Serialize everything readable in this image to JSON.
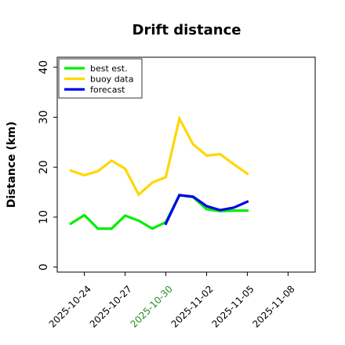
{
  "chart_data": {
    "type": "line",
    "title": "Drift distance",
    "ylabel": "Distance (km)",
    "xlabel": "",
    "ylim": [
      -1,
      42
    ],
    "xlim": [
      "2025-10-22",
      "2025-11-10"
    ],
    "yticks": [
      0,
      10,
      20,
      30,
      40
    ],
    "xticks": [
      "2025-10-24",
      "2025-10-27",
      "2025-10-30",
      "2025-11-02",
      "2025-11-05",
      "2025-11-08"
    ],
    "highlight_tick": "2025-10-30",
    "highlight_color": "#228B22",
    "legend": {
      "position": "top-left"
    },
    "grid": false,
    "series": [
      {
        "name": "best est.",
        "color": "#00ee00",
        "x": [
          "2025-10-23",
          "2025-10-24",
          "2025-10-25",
          "2025-10-26",
          "2025-10-27",
          "2025-10-28",
          "2025-10-29",
          "2025-10-30",
          "2025-10-31",
          "2025-11-01",
          "2025-11-02",
          "2025-11-03",
          "2025-11-04",
          "2025-11-05"
        ],
        "values": [
          8.7,
          10.4,
          7.7,
          7.7,
          10.3,
          9.3,
          7.7,
          9.0,
          14.4,
          14.0,
          11.6,
          11.2,
          11.3,
          11.3
        ]
      },
      {
        "name": "buoy data",
        "color": "#ffd700",
        "x": [
          "2025-10-23",
          "2025-10-24",
          "2025-10-25",
          "2025-10-26",
          "2025-10-27",
          "2025-10-28",
          "2025-10-29",
          "2025-10-30",
          "2025-10-31",
          "2025-11-01",
          "2025-11-02",
          "2025-11-03",
          "2025-11-04",
          "2025-11-05"
        ],
        "values": [
          19.3,
          18.4,
          19.2,
          21.3,
          19.7,
          14.5,
          16.9,
          18.0,
          29.7,
          24.6,
          22.3,
          22.6,
          20.6,
          18.7
        ]
      },
      {
        "name": "forecast",
        "color": "#0000ee",
        "x": [
          "2025-10-30",
          "2025-10-31",
          "2025-11-01",
          "2025-11-02",
          "2025-11-03",
          "2025-11-04",
          "2025-11-05"
        ],
        "values": [
          8.7,
          14.4,
          14.1,
          12.2,
          11.4,
          11.9,
          13.1
        ]
      }
    ]
  }
}
